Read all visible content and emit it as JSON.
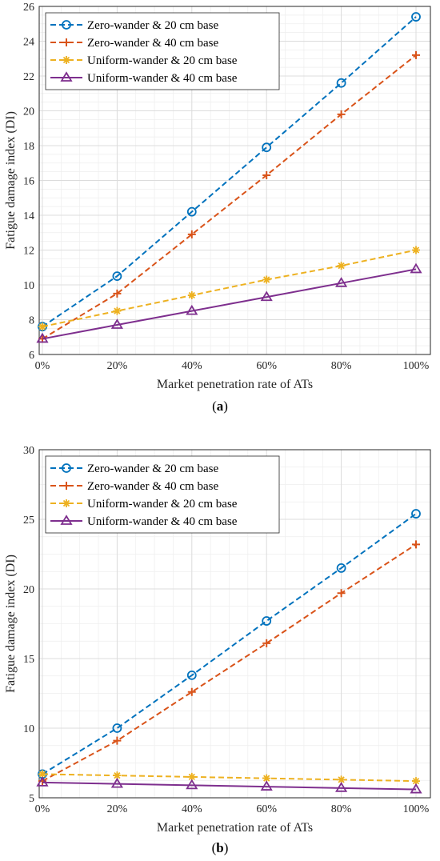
{
  "charts": [
    {
      "caption_open": "(",
      "caption_letter": "a",
      "caption_close": ")"
    },
    {
      "caption_open": "(",
      "caption_letter": "b",
      "caption_close": ")"
    }
  ],
  "chart_data": [
    {
      "type": "line",
      "title": "",
      "xlabel": "Market penetration rate of ATs",
      "ylabel": "Fatigue damage index (DI)",
      "categories": [
        "0%",
        "20%",
        "40%",
        "60%",
        "80%",
        "100%"
      ],
      "ylim": [
        6,
        26
      ],
      "yticks": [
        6,
        8,
        10,
        12,
        14,
        16,
        18,
        20,
        22,
        24,
        26
      ],
      "grid": true,
      "legend_position": "top-left",
      "series": [
        {
          "name": "Zero-wander & 20 cm base",
          "values": [
            7.6,
            10.5,
            14.2,
            17.9,
            21.6,
            25.4
          ],
          "color": "#0072BD",
          "style": "dashed",
          "marker": "circle"
        },
        {
          "name": "Zero-wander & 40 cm base",
          "values": [
            6.9,
            9.5,
            12.9,
            16.3,
            19.8,
            23.2
          ],
          "color": "#D95319",
          "style": "dashed",
          "marker": "plus"
        },
        {
          "name": "Uniform-wander & 20 cm base",
          "values": [
            7.6,
            8.5,
            9.4,
            10.3,
            11.1,
            12.0
          ],
          "color": "#EDB120",
          "style": "dashed",
          "marker": "asterisk"
        },
        {
          "name": "Uniform-wander & 40 cm base",
          "values": [
            6.9,
            7.7,
            8.5,
            9.3,
            10.1,
            10.9
          ],
          "color": "#7E2F8E",
          "style": "solid",
          "marker": "triangle"
        }
      ]
    },
    {
      "type": "line",
      "title": "",
      "xlabel": "Market penetration rate of ATs",
      "ylabel": "Fatigue damage index (DI)",
      "categories": [
        "0%",
        "20%",
        "40%",
        "60%",
        "80%",
        "100%"
      ],
      "ylim": [
        5,
        30
      ],
      "yticks": [
        5,
        10,
        15,
        20,
        25,
        30
      ],
      "grid": true,
      "legend_position": "top-left",
      "series": [
        {
          "name": "Zero-wander & 20 cm base",
          "values": [
            6.7,
            10.0,
            13.8,
            17.7,
            21.5,
            25.4
          ],
          "color": "#0072BD",
          "style": "dashed",
          "marker": "circle"
        },
        {
          "name": "Zero-wander & 40 cm base",
          "values": [
            6.2,
            9.1,
            12.6,
            16.1,
            19.7,
            23.2
          ],
          "color": "#D95319",
          "style": "dashed",
          "marker": "plus"
        },
        {
          "name": "Uniform-wander & 20 cm base",
          "values": [
            6.7,
            6.6,
            6.5,
            6.4,
            6.3,
            6.2
          ],
          "color": "#EDB120",
          "style": "dashed",
          "marker": "asterisk"
        },
        {
          "name": "Uniform-wander & 40 cm base",
          "values": [
            6.1,
            6.0,
            5.9,
            5.8,
            5.7,
            5.6
          ],
          "color": "#7E2F8E",
          "style": "solid",
          "marker": "triangle"
        }
      ]
    }
  ]
}
